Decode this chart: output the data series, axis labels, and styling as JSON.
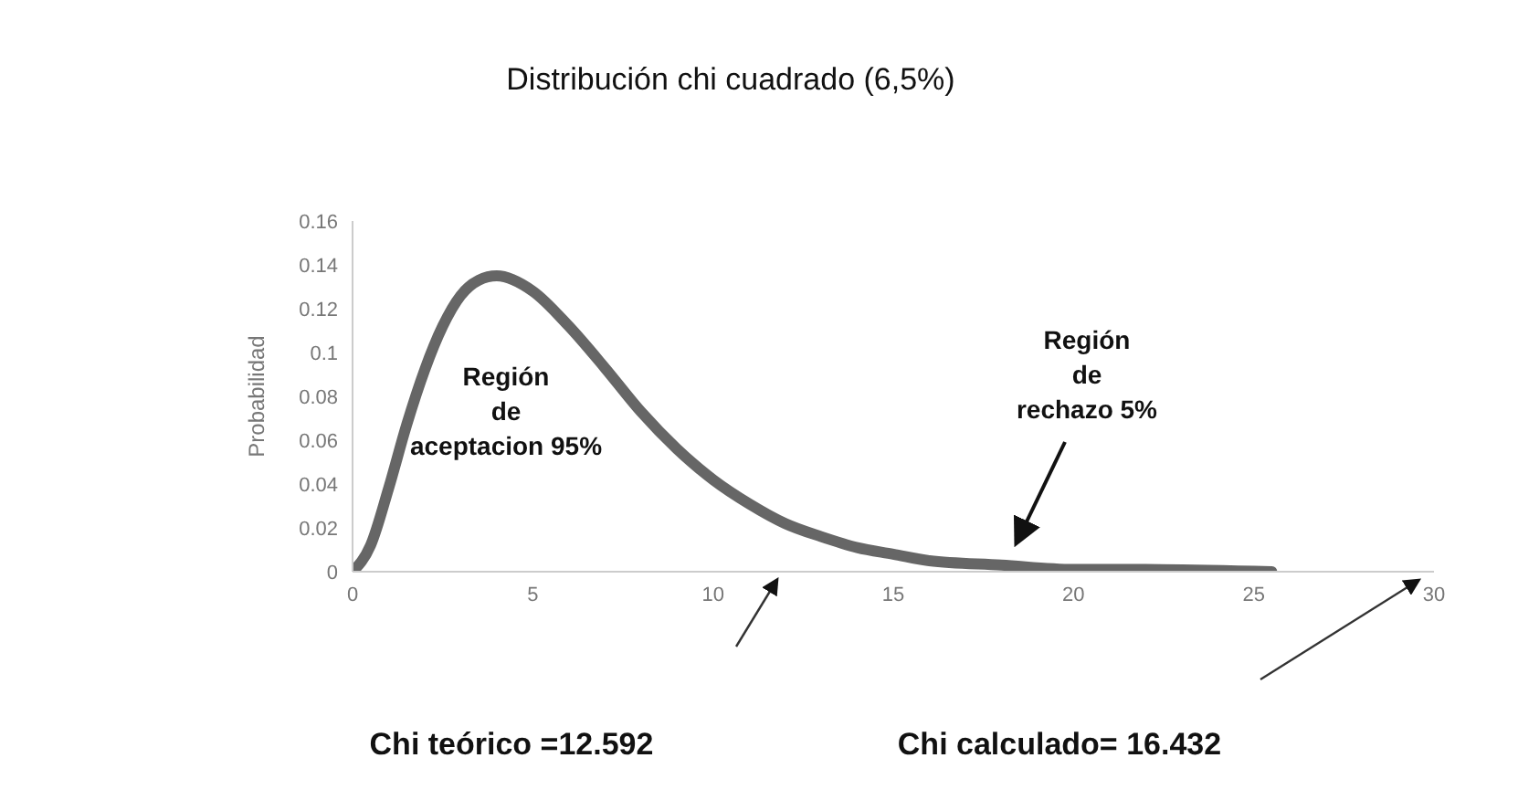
{
  "chart_data": {
    "type": "line",
    "title": "Distribución chi cuadrado (6,5%)",
    "ylabel": "Probabilidad",
    "x": [
      0,
      0.5,
      1,
      1.5,
      2,
      2.5,
      3,
      3.5,
      4,
      5,
      6,
      7,
      8,
      9,
      10,
      11,
      12,
      13,
      14,
      15,
      16,
      18,
      20,
      22,
      25.5
    ],
    "series": [
      {
        "color": "#666666",
        "values": [
          0,
          0.012,
          0.038,
          0.067,
          0.092,
          0.112,
          0.126,
          0.133,
          0.135,
          0.128,
          0.112,
          0.093,
          0.073,
          0.056,
          0.042,
          0.031,
          0.022,
          0.016,
          0.011,
          0.008,
          0.005,
          0.003,
          0.001,
          0.001,
          0
        ]
      }
    ],
    "xlim": [
      0,
      30
    ],
    "xticks": [
      0,
      5,
      10,
      15,
      20,
      25,
      30
    ],
    "ylim": [
      0,
      0.16
    ],
    "yticks": [
      0,
      0.02,
      0.04,
      0.06,
      0.08,
      0.1,
      0.12,
      0.14,
      0.16
    ],
    "grid": false,
    "legend": false,
    "marker": "none",
    "line_style": "solid",
    "annotations": [
      "Región\nde\naceptacion 95%",
      "Región\nde\nrechazo 5%",
      "Chi teórico =12.592",
      "Chi calculado= 16.432"
    ]
  }
}
